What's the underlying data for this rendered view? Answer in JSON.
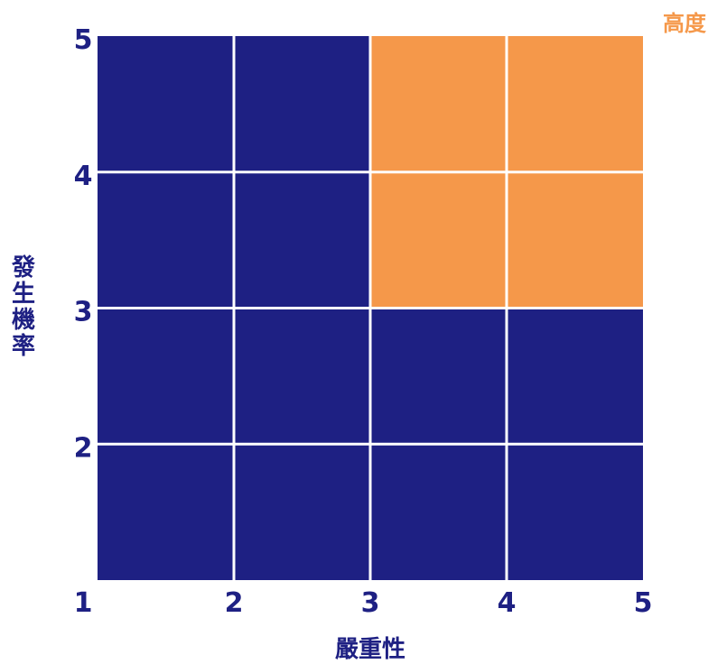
{
  "chart_data": {
    "type": "heatmap",
    "title": "",
    "xlabel": "嚴重性",
    "ylabel": "發生機率",
    "x_ticks": [
      "1",
      "2",
      "3",
      "4",
      "5"
    ],
    "y_ticks": [
      "2",
      "3",
      "4",
      "5"
    ],
    "xlim": [
      1,
      5
    ],
    "ylim": [
      1,
      5
    ],
    "grid": true,
    "legend": {
      "placement": "top-right",
      "entries": [
        {
          "label": "高度",
          "color": "#f5984a"
        }
      ]
    },
    "colors": {
      "base": "#1e2083",
      "high": "#f5984a",
      "text": "#1e2083",
      "grid": "#ffffff"
    },
    "cells": [
      {
        "x": [
          1,
          2
        ],
        "y": [
          1,
          2
        ],
        "level": "base"
      },
      {
        "x": [
          2,
          3
        ],
        "y": [
          1,
          2
        ],
        "level": "base"
      },
      {
        "x": [
          3,
          4
        ],
        "y": [
          1,
          2
        ],
        "level": "base"
      },
      {
        "x": [
          4,
          5
        ],
        "y": [
          1,
          2
        ],
        "level": "base"
      },
      {
        "x": [
          1,
          2
        ],
        "y": [
          2,
          3
        ],
        "level": "base"
      },
      {
        "x": [
          2,
          3
        ],
        "y": [
          2,
          3
        ],
        "level": "base"
      },
      {
        "x": [
          3,
          4
        ],
        "y": [
          2,
          3
        ],
        "level": "base"
      },
      {
        "x": [
          4,
          5
        ],
        "y": [
          2,
          3
        ],
        "level": "base"
      },
      {
        "x": [
          1,
          2
        ],
        "y": [
          3,
          4
        ],
        "level": "base"
      },
      {
        "x": [
          2,
          3
        ],
        "y": [
          3,
          4
        ],
        "level": "base"
      },
      {
        "x": [
          3,
          4
        ],
        "y": [
          3,
          4
        ],
        "level": "high"
      },
      {
        "x": [
          4,
          5
        ],
        "y": [
          3,
          4
        ],
        "level": "high"
      },
      {
        "x": [
          1,
          2
        ],
        "y": [
          4,
          5
        ],
        "level": "base"
      },
      {
        "x": [
          2,
          3
        ],
        "y": [
          4,
          5
        ],
        "level": "base"
      },
      {
        "x": [
          3,
          4
        ],
        "y": [
          4,
          5
        ],
        "level": "high"
      },
      {
        "x": [
          4,
          5
        ],
        "y": [
          4,
          5
        ],
        "level": "high"
      }
    ]
  }
}
